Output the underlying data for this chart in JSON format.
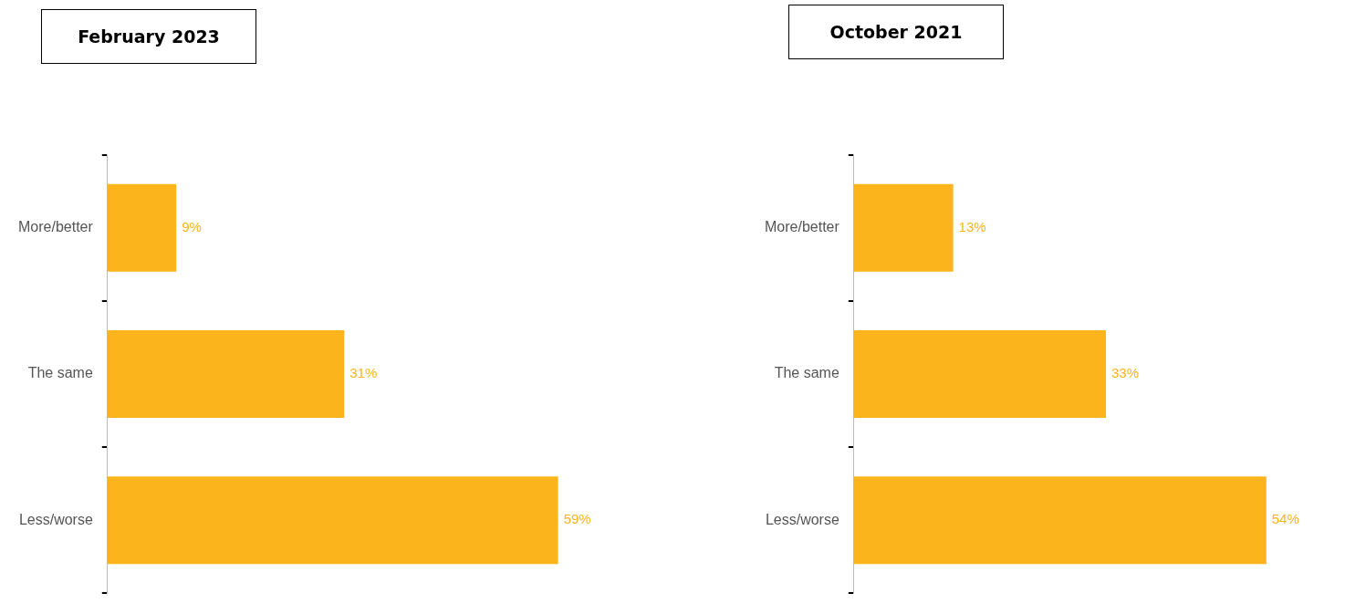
{
  "chart_data": [
    {
      "type": "bar",
      "orientation": "horizontal",
      "title": "February 2023",
      "categories": [
        "More/better",
        "The same",
        "Less/worse"
      ],
      "values": [
        9,
        31,
        59
      ],
      "value_labels": [
        "9%",
        "31%",
        "59%"
      ],
      "color": "#fbb41b"
    },
    {
      "type": "bar",
      "orientation": "horizontal",
      "title": "October 2021",
      "categories": [
        "More/better",
        "The same",
        "Less/worse"
      ],
      "values": [
        13,
        33,
        54
      ],
      "value_labels": [
        "13%",
        "33%",
        "54%"
      ],
      "color": "#fbb41b"
    }
  ]
}
